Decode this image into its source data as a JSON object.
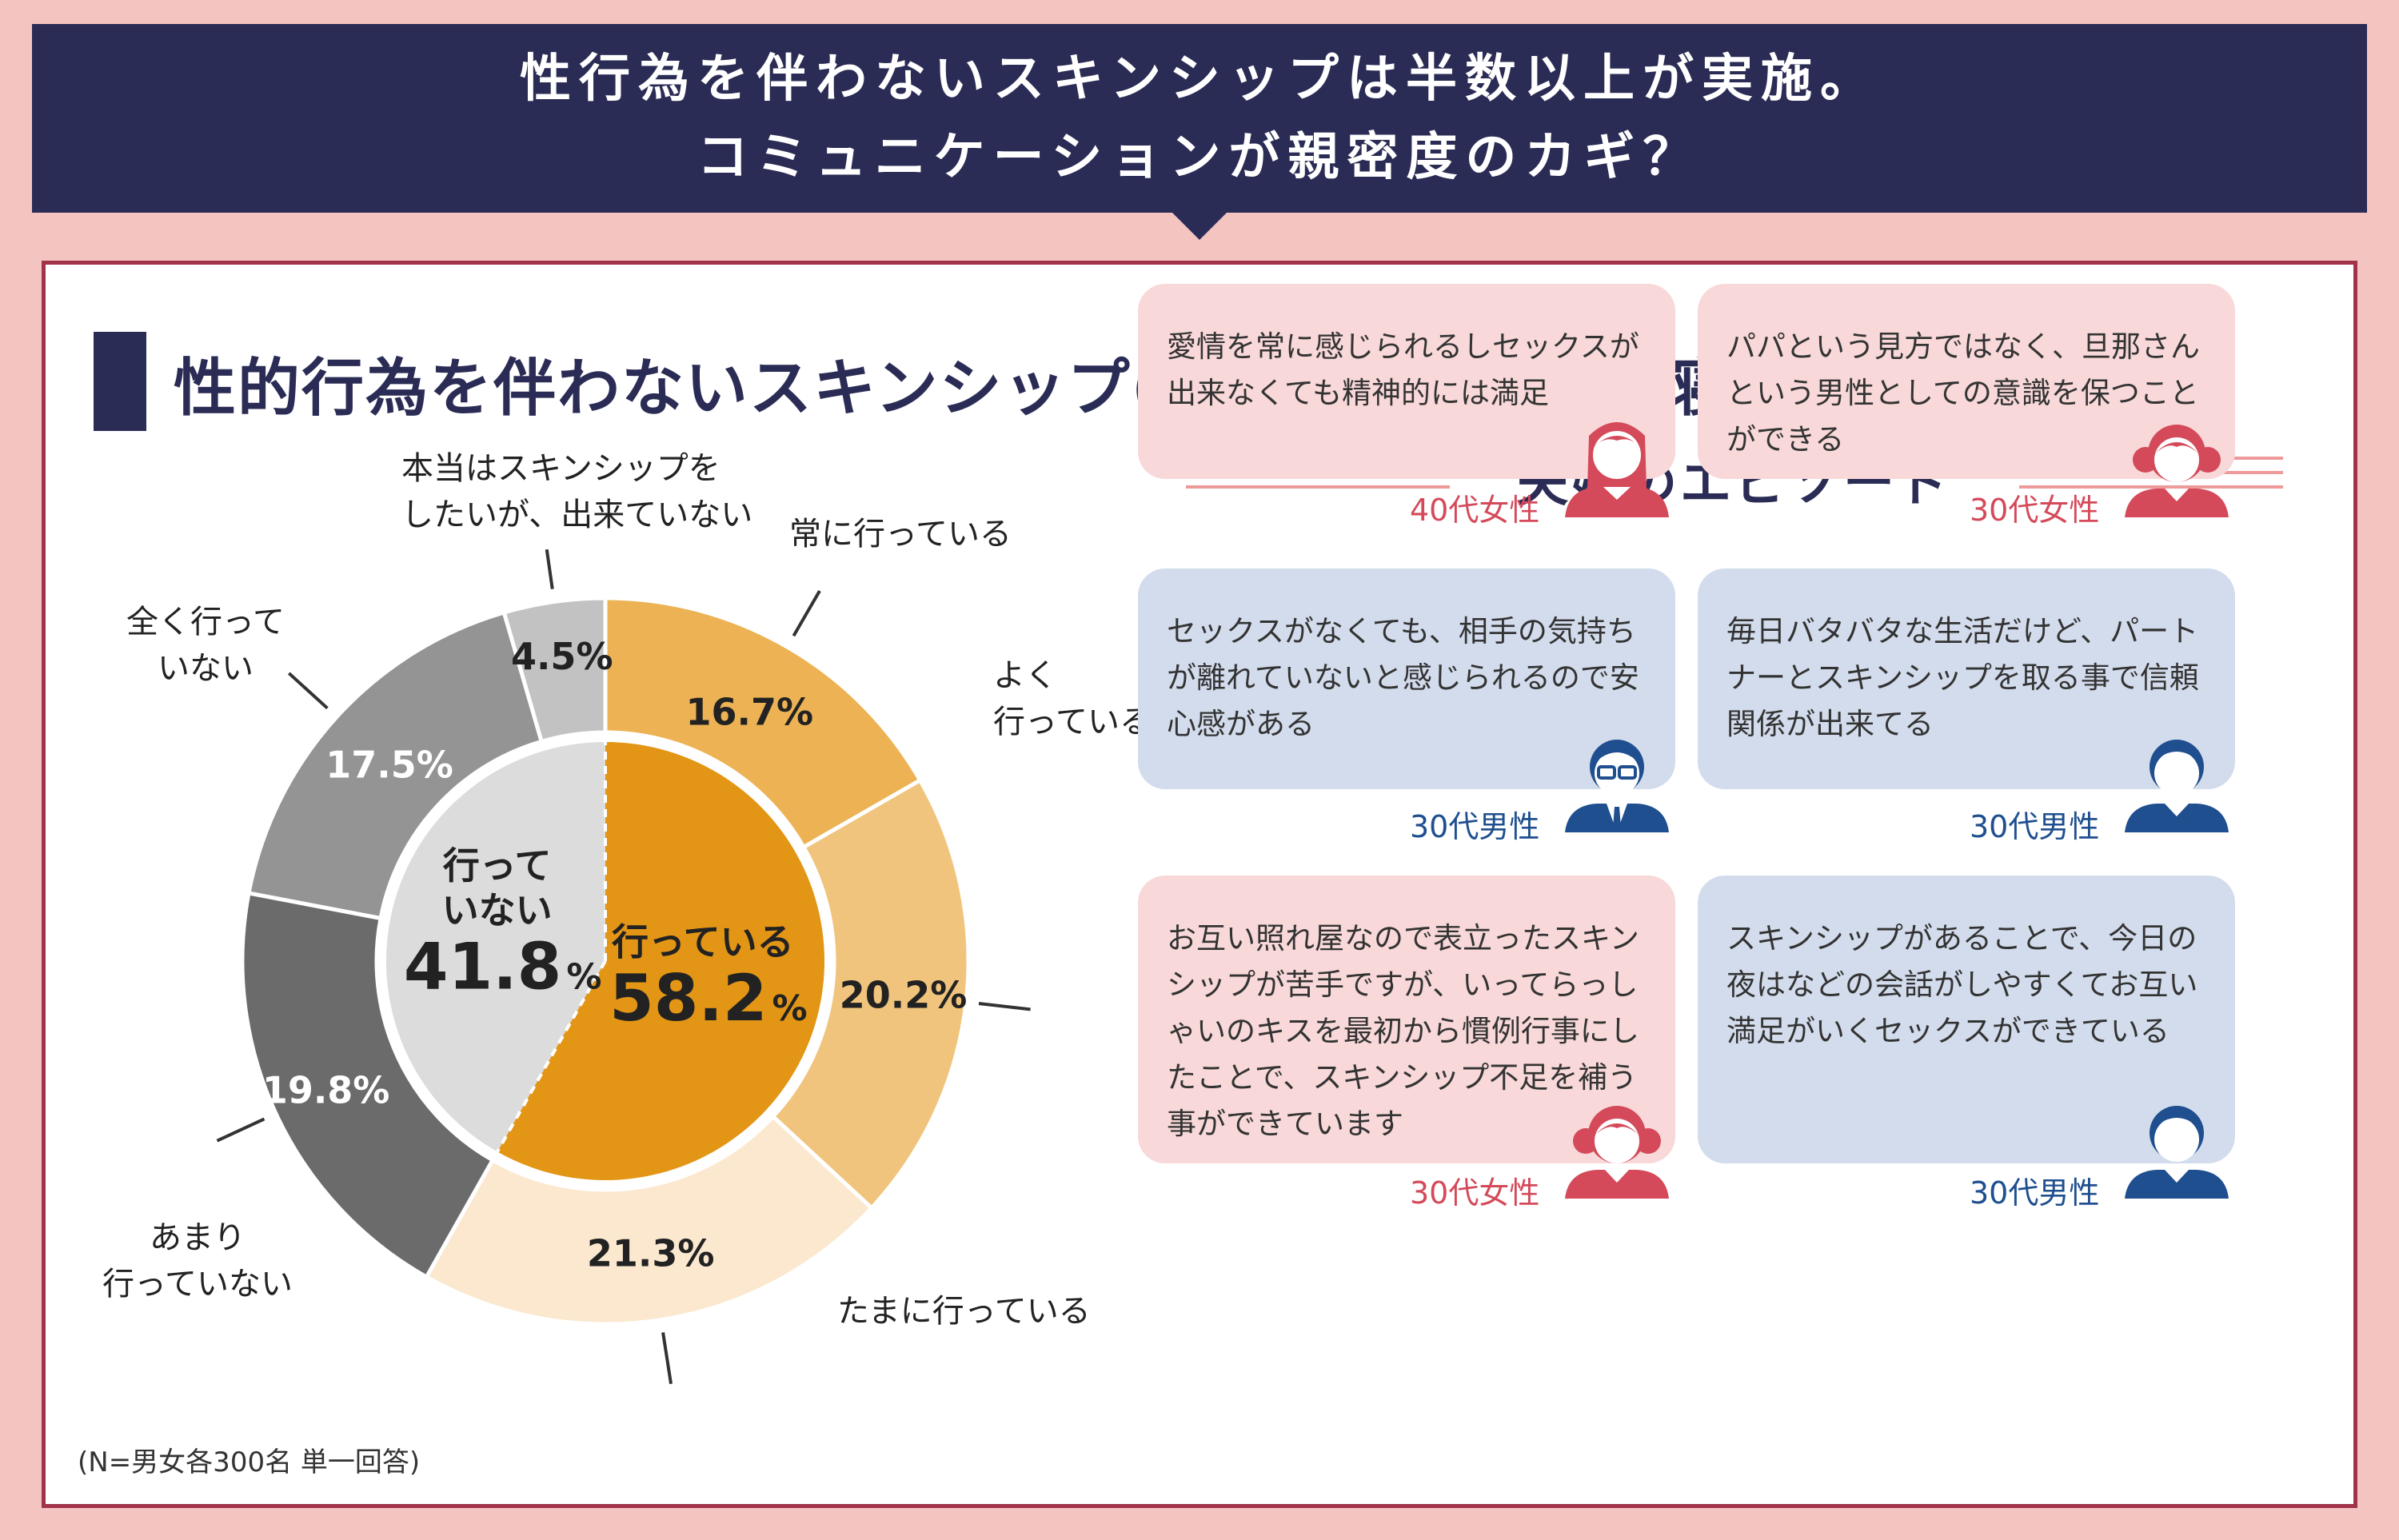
{
  "header": {
    "line1": "性行為を伴わないスキンシップは半数以上が実施。",
    "line2": "コミュニケーションが親密度のカギ？"
  },
  "section_title": "性的行為を伴わないスキンシップ(キス・ハグ・添い寝等)の頻度",
  "note": "(N=男女各300名 単一回答)",
  "chart_data": {
    "type": "pie",
    "inner": {
      "slices": [
        {
          "label_lines": [
            "行っている"
          ],
          "value": 58.2,
          "display": "58.2",
          "unit": "%",
          "color": "#e39515"
        },
        {
          "label_lines": [
            "行って",
            "いない"
          ],
          "value": 41.8,
          "display": "41.8",
          "unit": "%",
          "color": "#dcdcdc"
        }
      ]
    },
    "outer": {
      "slices": [
        {
          "label": "常に行っている",
          "value": 16.7,
          "display": "16.7%",
          "color": "#ecb254"
        },
        {
          "label": "よく行っている",
          "value": 20.2,
          "display": "20.2%",
          "color": "#f0c47c"
        },
        {
          "label": "たまに行っている",
          "value": 21.3,
          "display": "21.3%",
          "color": "#fbe8cf"
        },
        {
          "label": "あまり行っていない",
          "value": 19.8,
          "display": "19.8%",
          "color": "#6b6b6b"
        },
        {
          "label": "全く行っていない",
          "value": 17.5,
          "display": "17.5%",
          "color": "#949494"
        },
        {
          "label": "本当はスキンシップをしたいが、出来ていない",
          "value": 4.5,
          "display": "4.5%",
          "color": "#c2c2c2"
        }
      ]
    },
    "callouts": [
      {
        "lines": [
          "常に行っている"
        ]
      },
      {
        "lines": [
          "よく",
          "行っている"
        ]
      },
      {
        "lines": [
          "たまに行っている"
        ]
      },
      {
        "lines": [
          "あまり",
          "行っていない"
        ]
      },
      {
        "lines": [
          "全く行って",
          "いない"
        ]
      },
      {
        "lines": [
          "本当はスキンシップを",
          "したいが、出来ていない"
        ]
      }
    ]
  },
  "episodes": {
    "title": "夫婦のエピソード",
    "cards": [
      {
        "text": "愛情を常に感じられるしセックスが出来なくても精神的には満足",
        "who": "40代女性",
        "gender": "female",
        "avatar": "woman-long-hair-icon"
      },
      {
        "text": "パパという見方ではなく、旦那さんという男性としての意識を保つことができる",
        "who": "30代女性",
        "gender": "female",
        "avatar": "woman-pigtails-icon"
      },
      {
        "text": "セックスがなくても、相手の気持ちが離れていないと感じられるので安心感がある",
        "who": "30代男性",
        "gender": "male",
        "avatar": "man-glasses-suit-icon"
      },
      {
        "text": "毎日バタバタな生活だけど、パートナーとスキンシップを取る事で信頼関係が出来てる",
        "who": "30代男性",
        "gender": "male",
        "avatar": "man-short-hair-icon"
      },
      {
        "text": "お互い照れ屋なので表立ったスキンシップが苦手ですが、いってらっしゃいのキスを最初から慣例行事にしたことで、スキンシップ不足を補う事ができています",
        "who": "30代女性",
        "gender": "female",
        "avatar": "woman-pigtails-icon"
      },
      {
        "text": "スキンシップがあることで、今日の夜はなどの会話がしやすくてお互い満足がいくセックスができている",
        "who": "30代男性",
        "gender": "male",
        "avatar": "man-short-hair-icon"
      }
    ]
  }
}
